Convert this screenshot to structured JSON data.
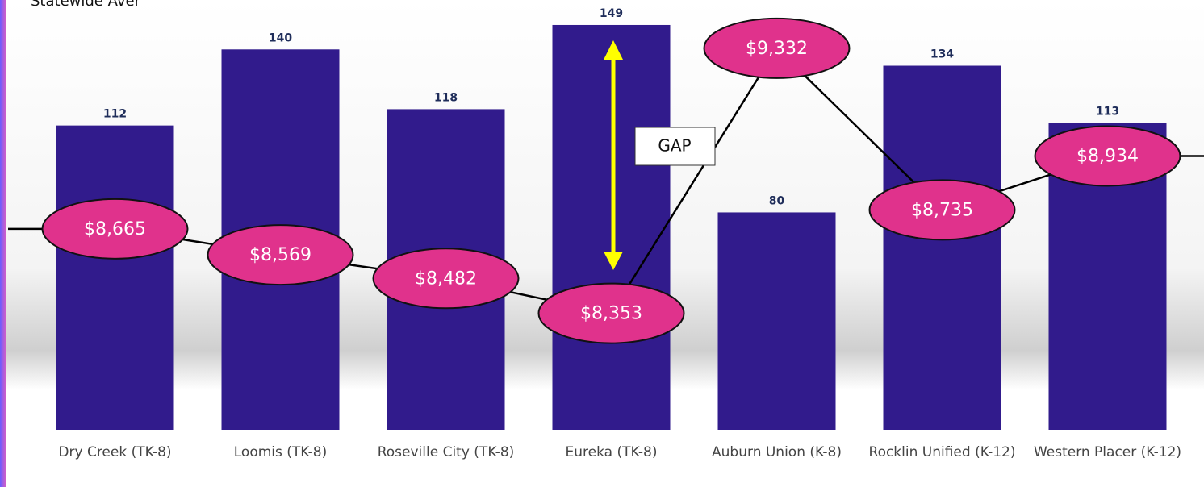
{
  "chart_data": {
    "type": "bar",
    "annotations": [
      "Statewide Aver",
      "GAP"
    ],
    "categories": [
      "Dry Creek (TK-8)",
      "Loomis (TK-8)",
      "Roseville City (TK-8)",
      "Eureka (TK-8)",
      "Auburn Union (K-8)",
      "Rocklin Unified (K-12)",
      "Western Placer (K-12)"
    ],
    "series": [
      {
        "type": "bar",
        "color": "#311b8c",
        "values": [
          112,
          140,
          118,
          149,
          80,
          134,
          113
        ]
      },
      {
        "type": "line",
        "axis": "y2",
        "color": "#e0328c",
        "values": [
          8665,
          8569,
          8482,
          8353,
          9332,
          8735,
          8934
        ],
        "value_labels": [
          "$8,665",
          "$8,569",
          "$8,482",
          "$8,353",
          "$9,332",
          "$8,735",
          "$8,934"
        ]
      }
    ],
    "ylim": [
      0,
      150
    ],
    "y2lim": [
      8200,
      9400
    ]
  }
}
